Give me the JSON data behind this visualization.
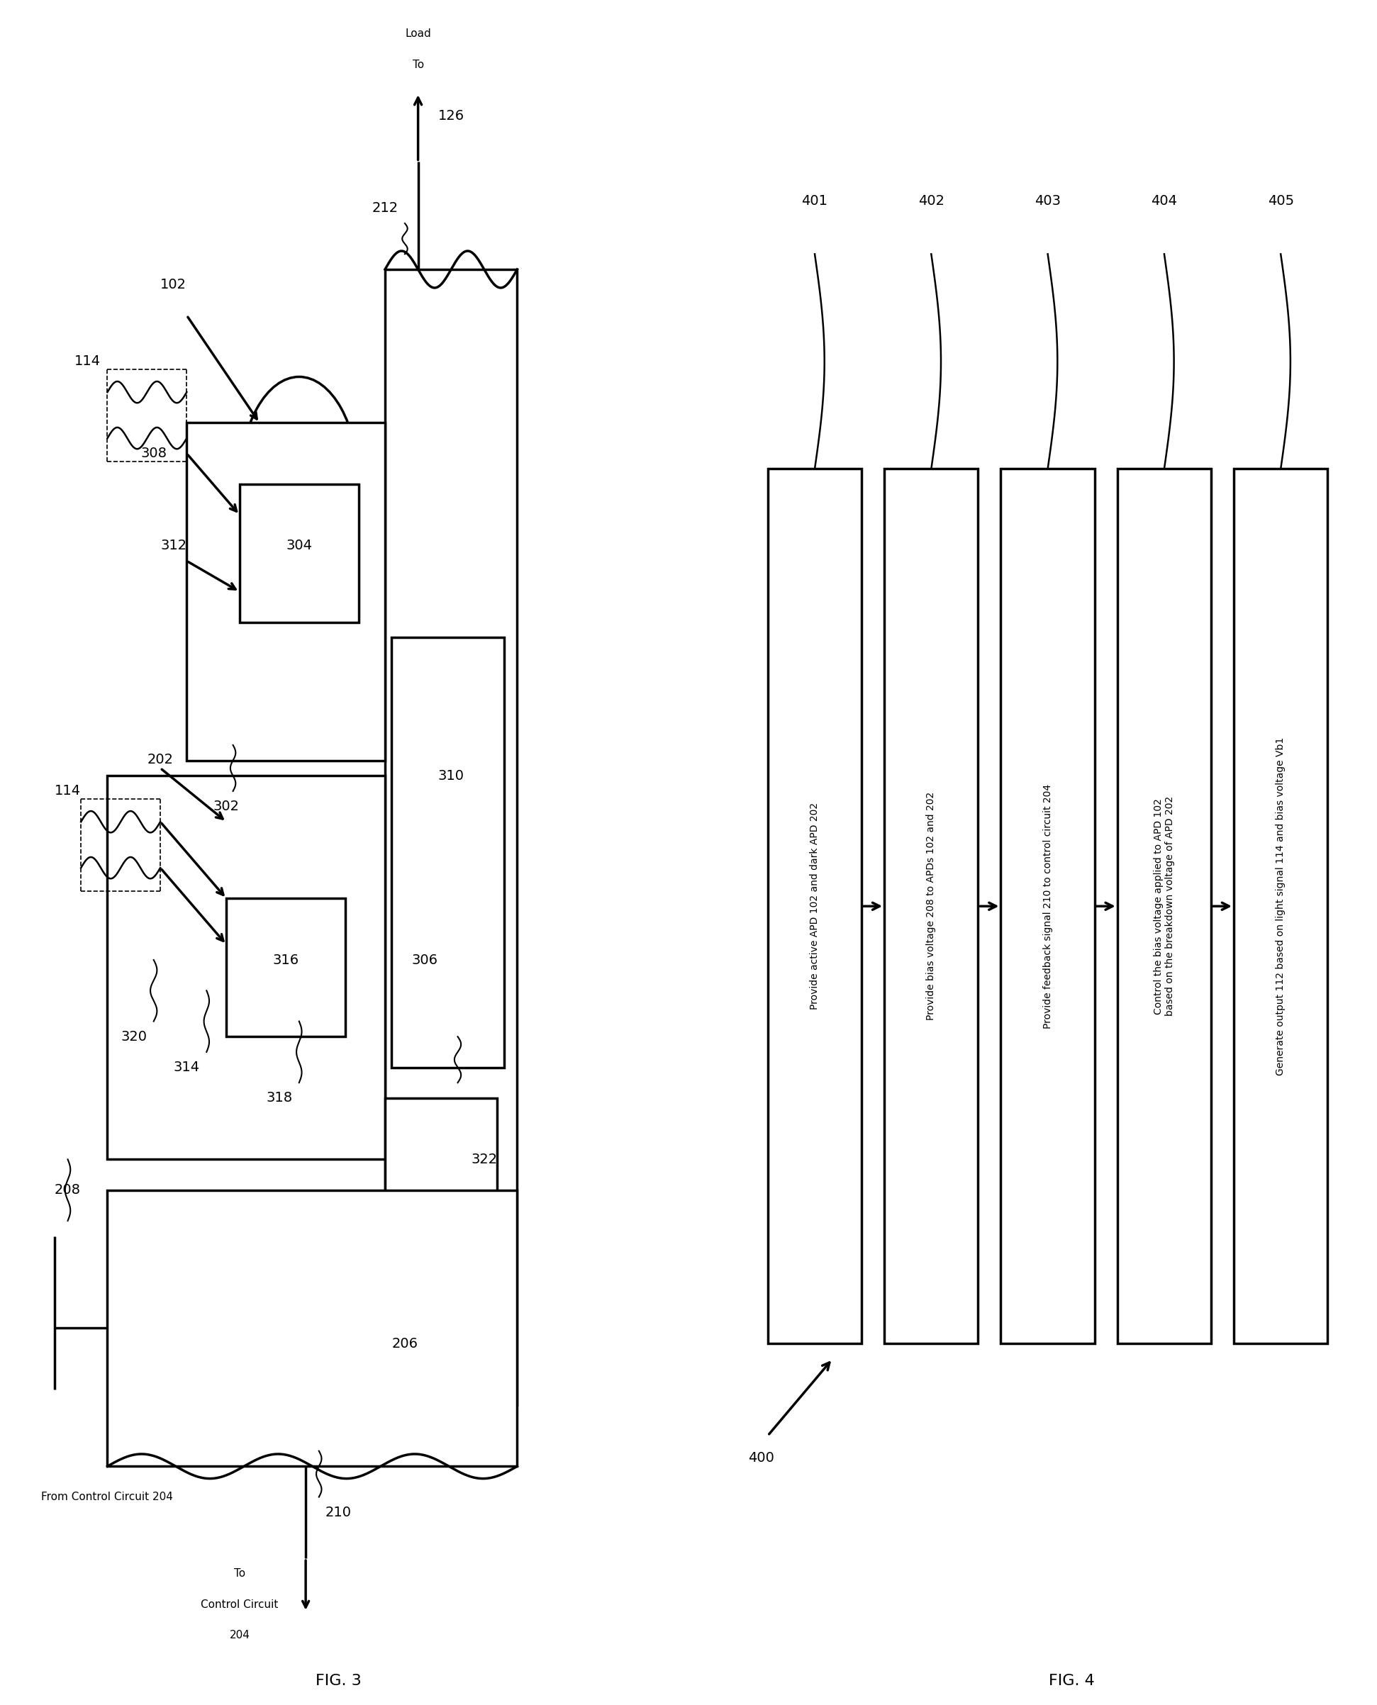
{
  "bg_color": "#ffffff",
  "line_color": "#000000",
  "lw": 2.5,
  "thin_lw": 1.8,
  "fs_label": 14,
  "fs_small": 11,
  "fs_title": 16,
  "fig3_title": "FIG. 3",
  "fig4_title": "FIG. 4",
  "fig4_steps": [
    {
      "id": "401",
      "text": "Provide active APD 102 and dark APD 202"
    },
    {
      "id": "402",
      "text": "Provide bias voltage 208 to APDs 102 and 202"
    },
    {
      "id": "403",
      "text": "Provide feedback signal 210 to control circuit 204"
    },
    {
      "id": "404",
      "text": "Control the bias voltage applied to APD 102\nbased on the breakdown voltage of APD 202"
    },
    {
      "id": "405",
      "text": "Generate output 112 based on light signal 114 and bias voltage Vb1"
    }
  ],
  "fig4_arrow_label": "400"
}
